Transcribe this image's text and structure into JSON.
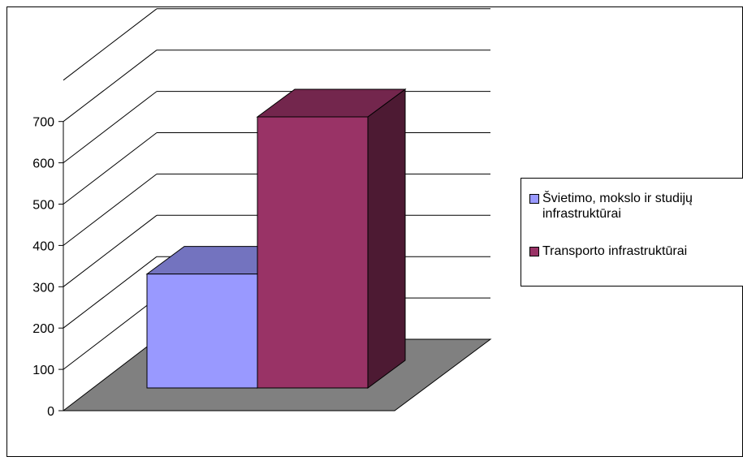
{
  "chart_data": {
    "type": "bar",
    "categories": [
      ""
    ],
    "series": [
      {
        "name": "Švietimo, mokslo ir studijų infrastruktūrai",
        "values": [
          290
        ],
        "color": "#9999ff"
      },
      {
        "name": "Transporto infrastruktūrai",
        "values": [
          690
        ],
        "color": "#993366"
      }
    ],
    "ylim": [
      0,
      700
    ],
    "yticks": [
      0,
      100,
      200,
      300,
      400,
      500,
      600,
      700
    ],
    "ytick_labels": [
      "0",
      "100",
      "200",
      "300",
      "400",
      "500",
      "600",
      "700"
    ],
    "three_d": true,
    "floor_color": "#808080",
    "grid": true,
    "legend": "right"
  },
  "legend": {
    "item1_line1": "Švietimo, mokslo ir studijų",
    "item1_line2": "infrastruktūrai",
    "item2": "Transporto infrastruktūrai"
  }
}
